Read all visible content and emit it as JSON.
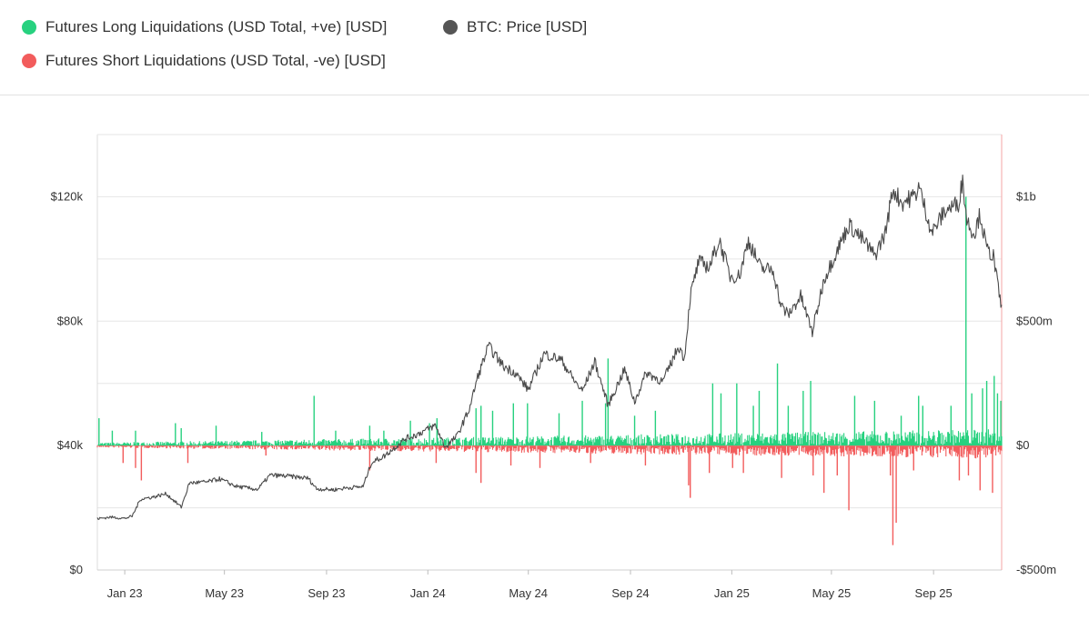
{
  "legend": {
    "long": {
      "label": "Futures Long Liquidations (USD Total, +ve) [USD]",
      "color": "#27d17f"
    },
    "price": {
      "label": "BTC: Price [USD]",
      "color": "#555555"
    },
    "short": {
      "label": "Futures Short Liquidations (USD Total, -ve) [USD]",
      "color": "#f25c5c"
    }
  },
  "chart_data": {
    "type": "line",
    "title": "",
    "x_ticks": [
      "Jan 23",
      "May 23",
      "Sep 23",
      "Jan 24",
      "May 24",
      "Sep 24",
      "Jan 25",
      "May 25",
      "Sep 25"
    ],
    "x_range": [
      "2022-11-29",
      "2025-11-22"
    ],
    "left_axis": {
      "ticks": [
        "$0",
        "$40k",
        "$80k",
        "$120k"
      ],
      "range": [
        0,
        140000
      ]
    },
    "right_axis": {
      "ticks": [
        "-$500m",
        "$0",
        "$500m",
        "$1b"
      ],
      "range": [
        -500000000,
        1250000000
      ]
    },
    "grid": true,
    "legend_placement": "top",
    "series": [
      {
        "name": "BTC: Price [USD]",
        "axis": "left",
        "kind": "line",
        "x": [
          "2022-11-29",
          "2022-12-15",
          "2023-01-01",
          "2023-01-10",
          "2023-01-20",
          "2023-02-05",
          "2023-02-20",
          "2023-03-10",
          "2023-03-20",
          "2023-04-10",
          "2023-04-25",
          "2023-05-15",
          "2023-06-10",
          "2023-06-25",
          "2023-07-15",
          "2023-08-10",
          "2023-08-20",
          "2023-09-10",
          "2023-09-25",
          "2023-10-15",
          "2023-10-25",
          "2023-11-10",
          "2023-12-05",
          "2023-12-20",
          "2024-01-10",
          "2024-01-22",
          "2024-02-05",
          "2024-02-20",
          "2024-03-01",
          "2024-03-14",
          "2024-04-01",
          "2024-04-15",
          "2024-05-01",
          "2024-05-20",
          "2024-06-10",
          "2024-06-25",
          "2024-07-05",
          "2024-07-20",
          "2024-08-05",
          "2024-08-25",
          "2024-09-06",
          "2024-09-20",
          "2024-10-10",
          "2024-10-29",
          "2024-11-05",
          "2024-11-12",
          "2024-11-22",
          "2024-12-05",
          "2024-12-17",
          "2024-12-30",
          "2025-01-10",
          "2025-01-21",
          "2025-02-05",
          "2025-02-20",
          "2025-03-01",
          "2025-03-10",
          "2025-03-25",
          "2025-04-08",
          "2025-04-22",
          "2025-05-10",
          "2025-05-22",
          "2025-06-10",
          "2025-06-22",
          "2025-07-05",
          "2025-07-14",
          "2025-07-25",
          "2025-08-10",
          "2025-08-14",
          "2025-08-30",
          "2025-09-15",
          "2025-10-01",
          "2025-10-06",
          "2025-10-11",
          "2025-10-20",
          "2025-10-27",
          "2025-11-04",
          "2025-11-12",
          "2025-11-17",
          "2025-11-22"
        ],
        "values": [
          16500,
          17000,
          16600,
          17300,
          22800,
          23500,
          24500,
          20200,
          28000,
          28300,
          29300,
          26900,
          25900,
          30500,
          30200,
          29500,
          26100,
          25800,
          26400,
          26800,
          34500,
          36700,
          42200,
          43700,
          46500,
          39500,
          43000,
          51800,
          62000,
          72000,
          65500,
          63500,
          58000,
          69500,
          67500,
          61000,
          57500,
          67000,
          53000,
          64500,
          54000,
          63500,
          60500,
          72000,
          68000,
          88000,
          99000,
          97500,
          106000,
          94500,
          94500,
          106000,
          97000,
          96500,
          85000,
          82000,
          88000,
          76500,
          93500,
          104000,
          111000,
          105500,
          101000,
          108500,
          122500,
          118000,
          120500,
          123500,
          108500,
          115500,
          118000,
          125500,
          112500,
          108000,
          114500,
          103000,
          101000,
          92000,
          84000
        ]
      },
      {
        "name": "Futures Long Liquidations (USD Total, +ve) [USD]",
        "axis": "right",
        "kind": "bars",
        "x": [
          "2022-12-01",
          "2022-12-17",
          "2023-01-14",
          "2023-03-03",
          "2023-03-10",
          "2023-04-21",
          "2023-06-15",
          "2023-08-17",
          "2023-09-12",
          "2023-10-23",
          "2023-11-09",
          "2023-12-11",
          "2024-01-03",
          "2024-01-12",
          "2024-02-28",
          "2024-03-05",
          "2024-03-19",
          "2024-04-13",
          "2024-04-30",
          "2024-06-07",
          "2024-07-05",
          "2024-08-02",
          "2024-08-05",
          "2024-09-06",
          "2024-10-01",
          "2024-12-09",
          "2024-12-19",
          "2025-01-07",
          "2025-01-27",
          "2025-02-03",
          "2025-02-25",
          "2025-03-10",
          "2025-03-28",
          "2025-04-06",
          "2025-05-29",
          "2025-06-22",
          "2025-07-24",
          "2025-08-14",
          "2025-08-19",
          "2025-09-22",
          "2025-10-10",
          "2025-10-17",
          "2025-10-30",
          "2025-11-04",
          "2025-11-13",
          "2025-11-17",
          "2025-11-21"
        ],
        "values": [
          110000000,
          60000000,
          60000000,
          90000000,
          70000000,
          80000000,
          55000000,
          200000000,
          60000000,
          80000000,
          60000000,
          100000000,
          90000000,
          110000000,
          150000000,
          160000000,
          140000000,
          170000000,
          170000000,
          130000000,
          180000000,
          170000000,
          350000000,
          120000000,
          140000000,
          250000000,
          210000000,
          250000000,
          160000000,
          220000000,
          330000000,
          160000000,
          220000000,
          260000000,
          200000000,
          180000000,
          120000000,
          200000000,
          160000000,
          160000000,
          1000000000,
          210000000,
          230000000,
          260000000,
          280000000,
          210000000,
          180000000
        ]
      },
      {
        "name": "Futures Short Liquidations (USD Total, -ve) [USD]",
        "axis": "right",
        "kind": "bars",
        "x": [
          "2022-12-30",
          "2023-01-14",
          "2023-01-21",
          "2023-03-18",
          "2023-06-20",
          "2023-10-23",
          "2024-01-11",
          "2024-02-28",
          "2024-03-05",
          "2024-04-10",
          "2024-05-15",
          "2024-07-15",
          "2024-09-19",
          "2024-11-10",
          "2024-11-12",
          "2024-12-05",
          "2025-01-02",
          "2025-01-15",
          "2025-03-02",
          "2025-04-09",
          "2025-04-22",
          "2025-05-08",
          "2025-05-22",
          "2025-07-11",
          "2025-07-14",
          "2025-07-18",
          "2025-08-08",
          "2025-10-02",
          "2025-10-13",
          "2025-10-27",
          "2025-11-11"
        ],
        "values": [
          -70000000,
          -90000000,
          -140000000,
          -70000000,
          -40000000,
          -100000000,
          -70000000,
          -110000000,
          -150000000,
          -80000000,
          -90000000,
          -70000000,
          -80000000,
          -160000000,
          -210000000,
          -110000000,
          -90000000,
          -110000000,
          -130000000,
          -120000000,
          -190000000,
          -120000000,
          -260000000,
          -120000000,
          -400000000,
          -310000000,
          -100000000,
          -140000000,
          -120000000,
          -180000000,
          -190000000
        ]
      }
    ]
  }
}
